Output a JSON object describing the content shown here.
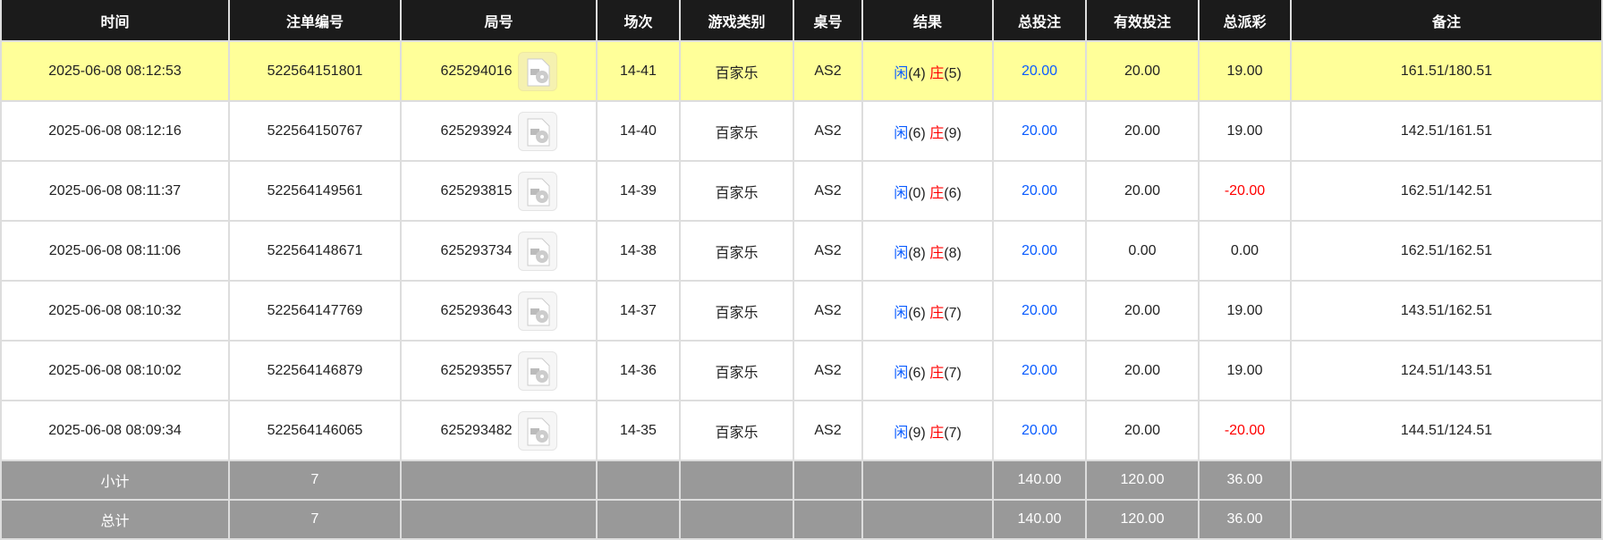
{
  "headers": [
    "时间",
    "注单编号",
    "局号",
    "场次",
    "游戏类别",
    "桌号",
    "结果",
    "总投注",
    "有效投注",
    "总派彩",
    "备注"
  ],
  "colors": {
    "header_bg": "#1b1b1b",
    "highlight_row": "#ffff99",
    "summary_bg": "#999999",
    "player": "#0a5cff",
    "banker": "#ff0000"
  },
  "rows": [
    {
      "time": "2025-06-08 08:12:53",
      "bet_id": "522564151801",
      "round": "625294016",
      "shoe": "14-41",
      "game": "百家乐",
      "table": "AS2",
      "player_label": "闲",
      "player_score": "(4)",
      "banker_label": "庄",
      "banker_score": "(5)",
      "total_bet": "20.00",
      "valid_bet": "20.00",
      "payout": "19.00",
      "note": "161.51/180.51"
    },
    {
      "time": "2025-06-08 08:12:16",
      "bet_id": "522564150767",
      "round": "625293924",
      "shoe": "14-40",
      "game": "百家乐",
      "table": "AS2",
      "player_label": "闲",
      "player_score": "(6)",
      "banker_label": "庄",
      "banker_score": "(9)",
      "total_bet": "20.00",
      "valid_bet": "20.00",
      "payout": "19.00",
      "note": "142.51/161.51"
    },
    {
      "time": "2025-06-08 08:11:37",
      "bet_id": "522564149561",
      "round": "625293815",
      "shoe": "14-39",
      "game": "百家乐",
      "table": "AS2",
      "player_label": "闲",
      "player_score": "(0)",
      "banker_label": "庄",
      "banker_score": "(6)",
      "total_bet": "20.00",
      "valid_bet": "20.00",
      "payout": "-20.00",
      "note": "162.51/142.51"
    },
    {
      "time": "2025-06-08 08:11:06",
      "bet_id": "522564148671",
      "round": "625293734",
      "shoe": "14-38",
      "game": "百家乐",
      "table": "AS2",
      "player_label": "闲",
      "player_score": "(8)",
      "banker_label": "庄",
      "banker_score": "(8)",
      "total_bet": "20.00",
      "valid_bet": "0.00",
      "payout": "0.00",
      "note": "162.51/162.51"
    },
    {
      "time": "2025-06-08 08:10:32",
      "bet_id": "522564147769",
      "round": "625293643",
      "shoe": "14-37",
      "game": "百家乐",
      "table": "AS2",
      "player_label": "闲",
      "player_score": "(6)",
      "banker_label": "庄",
      "banker_score": "(7)",
      "total_bet": "20.00",
      "valid_bet": "20.00",
      "payout": "19.00",
      "note": "143.51/162.51"
    },
    {
      "time": "2025-06-08 08:10:02",
      "bet_id": "522564146879",
      "round": "625293557",
      "shoe": "14-36",
      "game": "百家乐",
      "table": "AS2",
      "player_label": "闲",
      "player_score": "(6)",
      "banker_label": "庄",
      "banker_score": "(7)",
      "total_bet": "20.00",
      "valid_bet": "20.00",
      "payout": "19.00",
      "note": "124.51/143.51"
    },
    {
      "time": "2025-06-08 08:09:34",
      "bet_id": "522564146065",
      "round": "625293482",
      "shoe": "14-35",
      "game": "百家乐",
      "table": "AS2",
      "player_label": "闲",
      "player_score": "(9)",
      "banker_label": "庄",
      "banker_score": "(7)",
      "total_bet": "20.00",
      "valid_bet": "20.00",
      "payout": "-20.00",
      "note": "144.51/124.51"
    }
  ],
  "subtotal": {
    "label": "小计",
    "count": "7",
    "total_bet": "140.00",
    "valid_bet": "120.00",
    "payout": "36.00"
  },
  "total": {
    "label": "总计",
    "count": "7",
    "total_bet": "140.00",
    "valid_bet": "120.00",
    "payout": "36.00"
  }
}
